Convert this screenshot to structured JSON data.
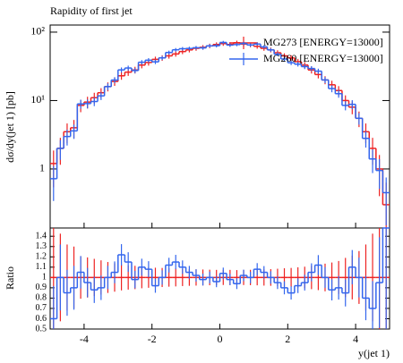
{
  "chart_data": {
    "type": "histogram",
    "title": "Rapidity of first jet",
    "ylabel": "dσ/dy(jet 1) [pb]",
    "xlabel": "y(jet 1)",
    "ratio_label": "Ratio",
    "log_y": true,
    "bins": [
      -5,
      -4.8,
      -4.6,
      -4.4,
      -4.2,
      -4,
      -3.8,
      -3.6,
      -3.4,
      -3.2,
      -3,
      -2.8,
      -2.6,
      -2.4,
      -2.2,
      -2,
      -1.8,
      -1.6,
      -1.4,
      -1.2,
      -1,
      -0.8,
      -0.6,
      -0.4,
      -0.2,
      0,
      0.2,
      0.4,
      0.6,
      0.8,
      1,
      1.2,
      1.4,
      1.6,
      1.8,
      2,
      2.2,
      2.4,
      2.6,
      2.8,
      3,
      3.2,
      3.4,
      3.6,
      3.8,
      4,
      4.2,
      4.4,
      4.6,
      4.8,
      5
    ],
    "series": [
      {
        "name": "MG273 [ENERGY=13000]",
        "color": "#ee2222",
        "values": [
          1.2,
          2.0,
          3.5,
          4.0,
          8.5,
          9.5,
          11,
          13,
          16,
          19,
          23,
          26,
          28,
          33,
          36,
          40,
          42,
          45,
          48,
          52,
          55,
          58,
          60,
          63,
          66,
          68,
          66,
          70,
          67,
          65,
          62,
          58,
          55,
          50,
          45,
          42,
          37,
          33,
          28,
          24,
          20,
          17,
          14,
          10,
          8,
          5.5,
          3.5,
          2.0,
          1.0,
          0.3
        ],
        "errors": [
          0.66,
          0.85,
          1.12,
          1.2,
          1.75,
          1.85,
          1.99,
          2.16,
          2.4,
          2.62,
          2.88,
          3.06,
          3.17,
          3.45,
          3.6,
          3.79,
          3.89,
          4.02,
          4.16,
          4.33,
          4.45,
          4.57,
          4.65,
          4.76,
          4.87,
          4.95,
          4.87,
          5.02,
          4.91,
          4.84,
          4.72,
          4.57,
          4.45,
          4.24,
          4.02,
          3.89,
          3.65,
          3.45,
          3.17,
          2.94,
          2.68,
          2.47,
          2.24,
          1.9,
          1.7,
          1.41,
          1.12,
          0.85,
          0.6,
          0.33
        ]
      },
      {
        "name": "MG260 [ENERGY=13000]",
        "color": "#3366ee",
        "values": [
          0.72,
          2.0,
          2.98,
          3.6,
          8.93,
          9.03,
          9.68,
          11.7,
          16,
          19.95,
          28.06,
          29.9,
          27.44,
          36.3,
          38.88,
          36.8,
          42,
          50.4,
          55.2,
          57.2,
          57.75,
          59.16,
          58.8,
          63,
          63.36,
          70.72,
          64.68,
          65.8,
          68.34,
          65,
          66.96,
          60.9,
          55,
          47.5,
          40.5,
          35.7,
          34.04,
          31.35,
          29.4,
          26.88,
          20,
          14.96,
          12.6,
          8.5,
          8.8,
          5.5,
          2.8,
          1.4,
          0.95,
          0.45
        ],
        "errors": [
          0.38,
          0.64,
          0.78,
          0.85,
          1.34,
          1.35,
          1.4,
          1.54,
          1.8,
          2.01,
          2.38,
          2.46,
          2.36,
          2.71,
          2.81,
          2.73,
          2.92,
          3.19,
          3.34,
          3.4,
          3.42,
          3.46,
          3.45,
          3.57,
          3.58,
          3.78,
          3.62,
          3.65,
          3.72,
          3.63,
          3.68,
          3.51,
          3.34,
          3.1,
          2.86,
          2.69,
          2.63,
          2.52,
          2.44,
          2.33,
          2.01,
          1.74,
          1.6,
          1.31,
          1.33,
          1.06,
          0.75,
          0.53,
          0.44,
          0.3
        ]
      }
    ],
    "xlim": [
      -5,
      5
    ],
    "xticks": [
      -4,
      -2,
      0,
      2,
      4
    ],
    "ylim": [
      0.137,
      127
    ],
    "yticks": [
      1,
      {
        "value": 10,
        "label": "10¹"
      },
      {
        "value": 100,
        "label": "10²"
      }
    ],
    "ratio_ylim": [
      0.5,
      1.48
    ],
    "ratio_yticks": [
      0.5,
      0.6,
      0.7,
      0.8,
      0.9,
      1,
      1.1,
      1.2,
      1.3,
      1.4
    ]
  }
}
